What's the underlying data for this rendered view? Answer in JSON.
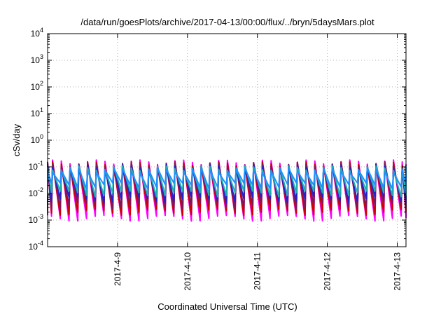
{
  "chart_data": {
    "type": "line",
    "title": "/data/run/goesPlots/archive/2017-04-13/00:00/flux/../bryn/5daysMars.plot",
    "xlabel": "Coordinated Universal Time (UTC)",
    "ylabel": "cSv/day",
    "y_scale": "log",
    "ylim": [
      0.0001,
      10000
    ],
    "xlim": [
      "2017-04-08T00:00",
      "2017-04-13T03:00"
    ],
    "grid": true,
    "x_ticks": [
      "2017-4-9",
      "2017-4-10",
      "2017-4-11",
      "2017-4-12",
      "2017-4-13"
    ],
    "y_ticks": [
      {
        "value": 0.0001,
        "base": "10",
        "exp": "-4"
      },
      {
        "value": 0.001,
        "base": "10",
        "exp": "-3"
      },
      {
        "value": 0.01,
        "base": "10",
        "exp": "-2"
      },
      {
        "value": 0.1,
        "base": "10",
        "exp": "-1"
      },
      {
        "value": 1,
        "base": "10",
        "exp": "0"
      },
      {
        "value": 10,
        "base": "10",
        "exp": "1"
      },
      {
        "value": 100,
        "base": "10",
        "exp": "2"
      },
      {
        "value": 1000,
        "base": "10",
        "exp": "3"
      },
      {
        "value": 10000,
        "base": "10",
        "exp": "4"
      }
    ],
    "pattern": {
      "description": "repeating sawtooth: sharp rise to peak then decay",
      "period_hours": 3,
      "peak_values": [
        0.15,
        0.13,
        0.12,
        0.1,
        0.09,
        0.075
      ],
      "trough_values": [
        0.0012,
        0.002,
        0.0035,
        0.006,
        0.01,
        0.02
      ]
    },
    "series": [
      {
        "color": "#ff00ff"
      },
      {
        "color": "#cc0000"
      },
      {
        "color": "#7a1a5a"
      },
      {
        "color": "#2222cc"
      },
      {
        "color": "#20b0b0"
      },
      {
        "color": "#1e90ff"
      }
    ]
  }
}
